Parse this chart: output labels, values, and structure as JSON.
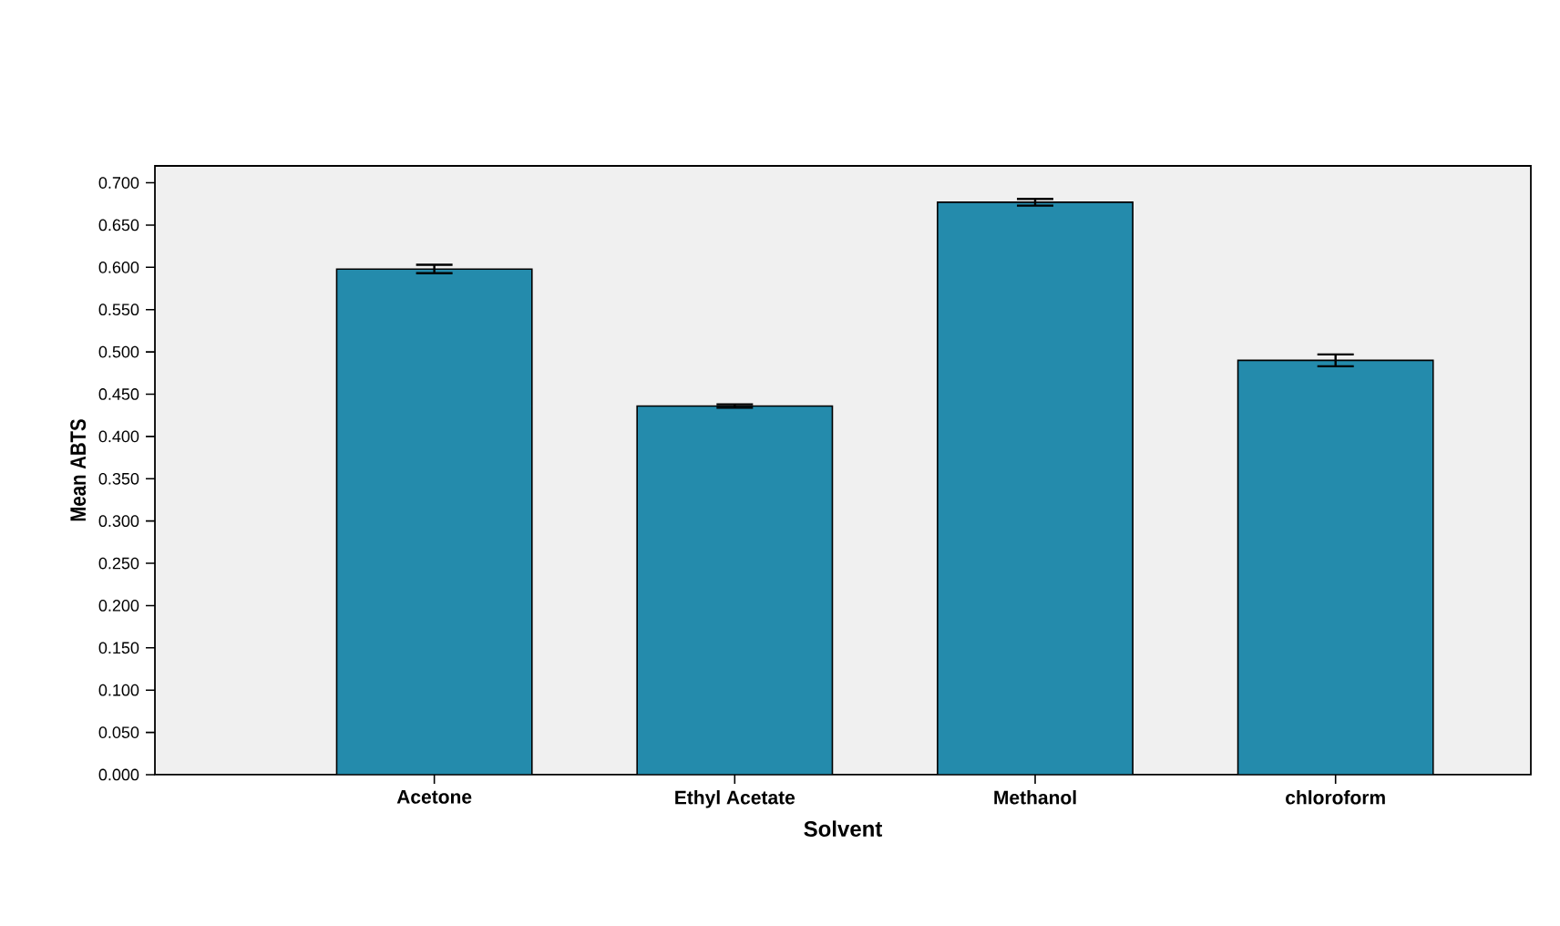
{
  "chart_data": {
    "type": "bar",
    "xlabel": "Solvent",
    "ylabel": "Mean ABTS",
    "categories": [
      "Acetone",
      "Ethyl Acetate",
      "Methanol",
      "chloroform"
    ],
    "values": [
      0.598,
      0.436,
      0.677,
      0.49
    ],
    "errors": [
      0.005,
      0.002,
      0.004,
      0.007
    ],
    "color": "#248bac",
    "ylim": [
      0,
      0.72
    ],
    "yticks": [
      {
        "value": 0,
        "label": "0.000"
      },
      {
        "value": 0.05,
        "label": "0.050"
      },
      {
        "value": 0.1,
        "label": "0.100"
      },
      {
        "value": 0.15,
        "label": "0.150"
      },
      {
        "value": 0.2,
        "label": "0.200"
      },
      {
        "value": 0.25,
        "label": "0.250"
      },
      {
        "value": 0.3,
        "label": "0.300"
      },
      {
        "value": 0.35,
        "label": "0.350"
      },
      {
        "value": 0.4,
        "label": "0.400"
      },
      {
        "value": 0.45,
        "label": "0.450"
      },
      {
        "value": 0.5,
        "label": "0.500"
      },
      {
        "value": 0.55,
        "label": "0.550"
      },
      {
        "value": 0.6,
        "label": "0.600"
      },
      {
        "value": 0.65,
        "label": "0.650"
      },
      {
        "value": 0.7,
        "label": "0.700"
      }
    ],
    "grid": false
  }
}
